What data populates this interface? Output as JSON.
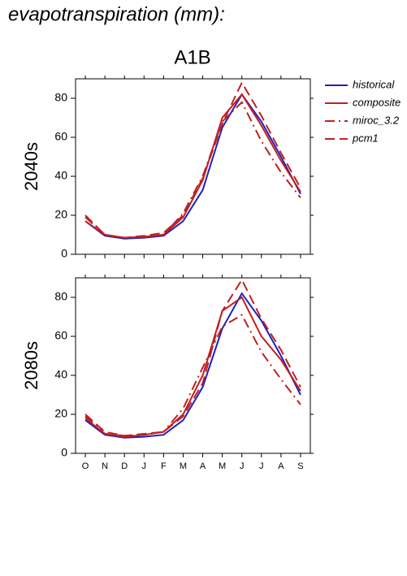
{
  "header": {
    "title": "evapotranspiration (mm):",
    "subtitle": "A1B"
  },
  "chart_data": [
    {
      "type": "line",
      "ylabel": "2040s",
      "categories": [
        null,
        null,
        null,
        null,
        null,
        null,
        null,
        null,
        null,
        null,
        null,
        null
      ],
      "ylim": [
        0,
        90
      ],
      "yticks": [
        0,
        20,
        40,
        60,
        80
      ],
      "legend": "right",
      "series": [
        {
          "name": "historical",
          "color": "#2020c0",
          "dash": "solid",
          "values": [
            17,
            9.5,
            8,
            8.5,
            9.5,
            17,
            33,
            65,
            82,
            68,
            50,
            31
          ]
        },
        {
          "name": "composite",
          "color": "#c02020",
          "dash": "solid",
          "values": [
            17,
            10,
            8.5,
            9,
            10,
            19,
            38,
            70,
            82,
            66,
            48,
            32
          ]
        },
        {
          "name": "miroc_3.2",
          "color": "#c02020",
          "dash": "dashdot",
          "values": [
            19,
            10,
            8.5,
            9,
            10,
            21,
            40,
            68,
            78,
            58,
            42,
            29
          ]
        },
        {
          "name": "pcm1",
          "color": "#c02020",
          "dash": "dashed",
          "values": [
            20,
            10,
            8.5,
            9.5,
            11,
            20,
            39,
            67,
            88,
            71,
            52,
            34
          ]
        }
      ]
    },
    {
      "type": "line",
      "ylabel": "2080s",
      "categories": [
        "O",
        "N",
        "D",
        "J",
        "F",
        "M",
        "A",
        "M",
        "J",
        "J",
        "A",
        "S"
      ],
      "ylim": [
        0,
        90
      ],
      "yticks": [
        0,
        20,
        40,
        60,
        80
      ],
      "series": [
        {
          "color": "#2020c0",
          "dash": "solid",
          "values": [
            17,
            9.5,
            8,
            8.5,
            9.5,
            17,
            34,
            64,
            82,
            68,
            50,
            30
          ]
        },
        {
          "color": "#c02020",
          "dash": "solid",
          "values": [
            18,
            10,
            8.5,
            9.5,
            11,
            20,
            40,
            73,
            80,
            60,
            48,
            32
          ]
        },
        {
          "color": "#c02020",
          "dash": "dashdot",
          "values": [
            19,
            10,
            9,
            9.5,
            11,
            23,
            44,
            65,
            71,
            52,
            38,
            25
          ]
        },
        {
          "color": "#c02020",
          "dash": "dashed",
          "values": [
            20,
            11,
            9,
            10,
            11,
            19,
            36,
            73,
            89,
            69,
            53,
            34
          ]
        }
      ]
    }
  ]
}
